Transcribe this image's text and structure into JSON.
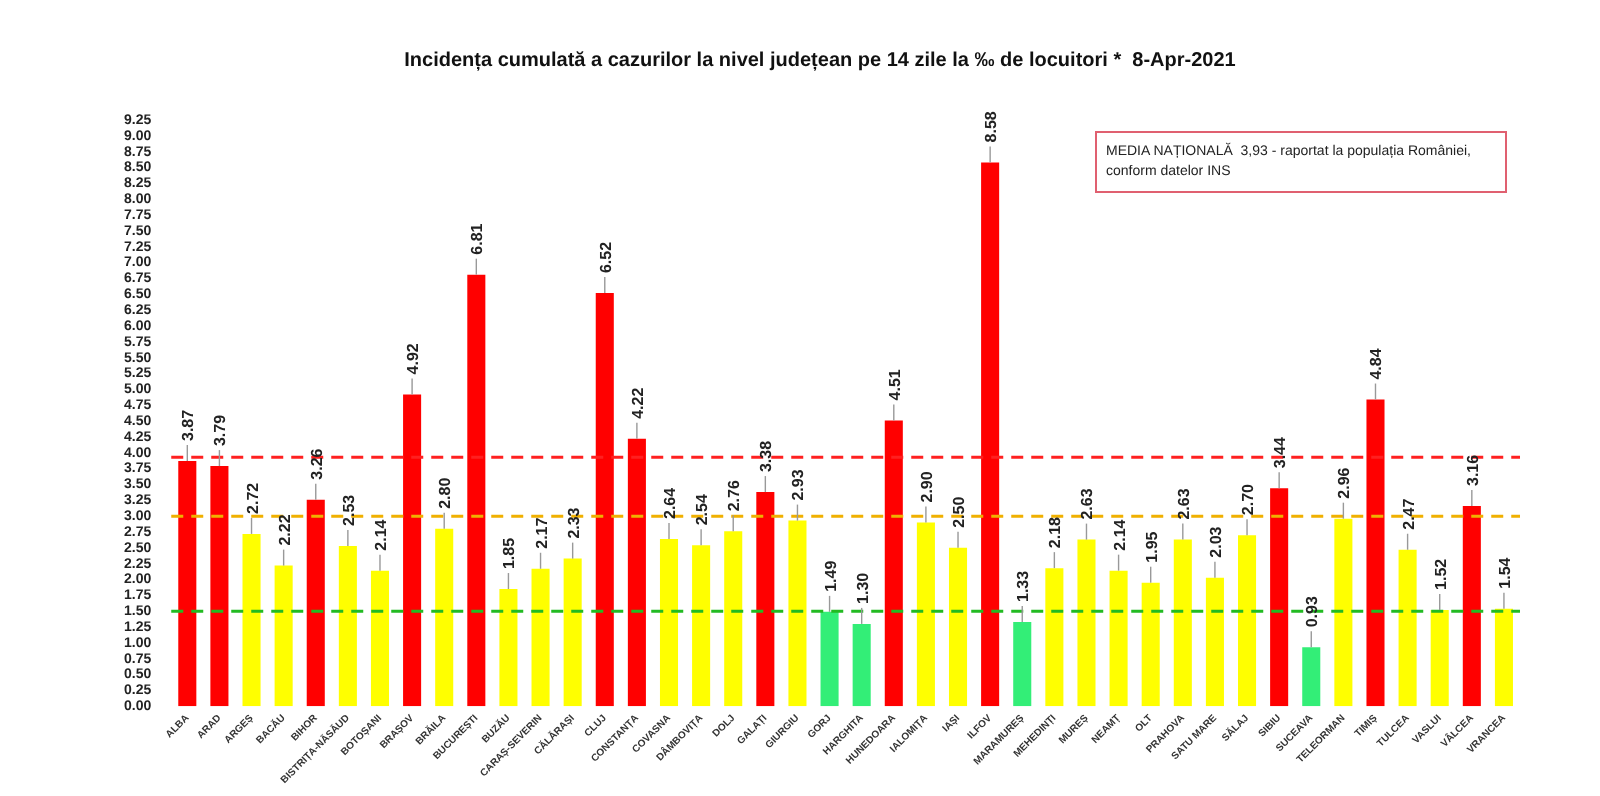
{
  "chart_data": {
    "type": "bar",
    "title": "Incidența cumulată a cazurilor la nivel județean pe 14 zile la ‰ de locuitori *  8-Apr-2021",
    "categories": [
      "ALBA",
      "ARAD",
      "ARGEȘ",
      "BACĂU",
      "BIHOR",
      "BISTRIȚA-NĂSĂUD",
      "BOTOȘANI",
      "BRAȘOV",
      "BRĂILA",
      "BUCUREȘTI",
      "BUZĂU",
      "CARAȘ-SEVERIN",
      "CĂLĂRAȘI",
      "CLUJ",
      "CONSTANȚA",
      "COVASNA",
      "DÂMBOVIȚA",
      "DOLJ",
      "GALAȚI",
      "GIURGIU",
      "GORJ",
      "HARGHITA",
      "HUNEDOARA",
      "IALOMIȚA",
      "IAȘI",
      "ILFOV",
      "MARAMUREȘ",
      "MEHEDINȚI",
      "MUREȘ",
      "NEAMȚ",
      "OLT",
      "PRAHOVA",
      "SATU MARE",
      "SĂLAJ",
      "SIBIU",
      "SUCEAVA",
      "TELEORMAN",
      "TIMIȘ",
      "TULCEA",
      "VASLUI",
      "VÂLCEA",
      "VRANCEA"
    ],
    "values": [
      3.87,
      3.79,
      2.72,
      2.22,
      3.26,
      2.53,
      2.14,
      4.92,
      2.8,
      6.81,
      1.85,
      2.17,
      2.33,
      6.52,
      4.22,
      2.64,
      2.54,
      2.76,
      3.38,
      2.93,
      1.49,
      1.3,
      4.51,
      2.9,
      2.5,
      8.58,
      1.33,
      2.18,
      2.63,
      2.14,
      1.95,
      2.63,
      2.03,
      2.7,
      3.44,
      0.93,
      2.96,
      4.84,
      2.47,
      1.52,
      3.16,
      1.54
    ],
    "value_labels": [
      "3.87",
      "3.79",
      "2.72",
      "2.22",
      "3.26",
      "2.53",
      "2.14",
      "4.92",
      "2.80",
      "6.81",
      "1.85",
      "2.17",
      "2.33",
      "6.52",
      "4.22",
      "2.64",
      "2.54",
      "2.76",
      "3.38",
      "2.93",
      "1.49",
      "1.30",
      "4.51",
      "2.90",
      "2.50",
      "8.58",
      "1.33",
      "2.18",
      "2.63",
      "2.14",
      "1.95",
      "2.63",
      "2.03",
      "2.70",
      "3.44",
      "0.93",
      "2.96",
      "4.84",
      "2.47",
      "1.52",
      "3.16",
      "1.54"
    ],
    "colors": [
      "#ff0000",
      "#ff0000",
      "#ffff00",
      "#ffff00",
      "#ff0000",
      "#ffff00",
      "#ffff00",
      "#ff0000",
      "#ffff00",
      "#ff0000",
      "#ffff00",
      "#ffff00",
      "#ffff00",
      "#ff0000",
      "#ff0000",
      "#ffff00",
      "#ffff00",
      "#ffff00",
      "#ff0000",
      "#ffff00",
      "#33ee77",
      "#33ee77",
      "#ff0000",
      "#ffff00",
      "#ffff00",
      "#ff0000",
      "#33ee77",
      "#ffff00",
      "#ffff00",
      "#ffff00",
      "#ffff00",
      "#ffff00",
      "#ffff00",
      "#ffff00",
      "#ff0000",
      "#33ee77",
      "#ffff00",
      "#ff0000",
      "#ffff00",
      "#ffff00",
      "#ff0000",
      "#ffff00"
    ],
    "ylim": [
      0,
      9.25
    ],
    "yticks": [
      {
        "value": 0,
        "label": "0.00"
      },
      {
        "value": 0.25,
        "label": "0.25"
      },
      {
        "value": 0.5,
        "label": "0.50"
      },
      {
        "value": 0.75,
        "label": "0.75"
      },
      {
        "value": 1,
        "label": "1.00"
      },
      {
        "value": 1.25,
        "label": "1.25"
      },
      {
        "value": 1.5,
        "label": "1.50"
      },
      {
        "value": 1.75,
        "label": "1.75"
      },
      {
        "value": 2,
        "label": "2.00"
      },
      {
        "value": 2.25,
        "label": "2.25"
      },
      {
        "value": 2.5,
        "label": "2.50"
      },
      {
        "value": 2.75,
        "label": "2.75"
      },
      {
        "value": 3,
        "label": "3.00"
      },
      {
        "value": 3.25,
        "label": "3.25"
      },
      {
        "value": 3.5,
        "label": "3.50"
      },
      {
        "value": 3.75,
        "label": "3.75"
      },
      {
        "value": 4,
        "label": "4.00"
      },
      {
        "value": 4.25,
        "label": "4.25"
      },
      {
        "value": 4.5,
        "label": "4.50"
      },
      {
        "value": 4.75,
        "label": "4.75"
      },
      {
        "value": 5,
        "label": "5.00"
      },
      {
        "value": 5.25,
        "label": "5.25"
      },
      {
        "value": 5.5,
        "label": "5.50"
      },
      {
        "value": 5.75,
        "label": "5.75"
      },
      {
        "value": 6,
        "label": "6.00"
      },
      {
        "value": 6.25,
        "label": "6.25"
      },
      {
        "value": 6.5,
        "label": "6.50"
      },
      {
        "value": 6.75,
        "label": "6.75"
      },
      {
        "value": 7,
        "label": "7.00"
      },
      {
        "value": 7.25,
        "label": "7.25"
      },
      {
        "value": 7.5,
        "label": "7.50"
      },
      {
        "value": 7.75,
        "label": "7.75"
      },
      {
        "value": 8,
        "label": "8.00"
      },
      {
        "value": 8.25,
        "label": "8.25"
      },
      {
        "value": 8.5,
        "label": "8.50"
      },
      {
        "value": 8.75,
        "label": "8.75"
      },
      {
        "value": 9,
        "label": "9.00"
      },
      {
        "value": 9.25,
        "label": "9.25"
      }
    ],
    "ref_lines": [
      {
        "axis": "y",
        "value": 3.93,
        "color": "#ff2020",
        "line_style": "dashed"
      },
      {
        "axis": "y",
        "value": 3,
        "color": "#f0b000",
        "line_style": "dashed"
      },
      {
        "axis": "y",
        "value": 1.5,
        "color": "#22bb22",
        "line_style": "dashed"
      }
    ],
    "annotations": [
      "MEDIA NAȚIONALĂ  3,93 - raportat la populația României, conform datelor INS"
    ],
    "grid": false,
    "legend": false
  }
}
